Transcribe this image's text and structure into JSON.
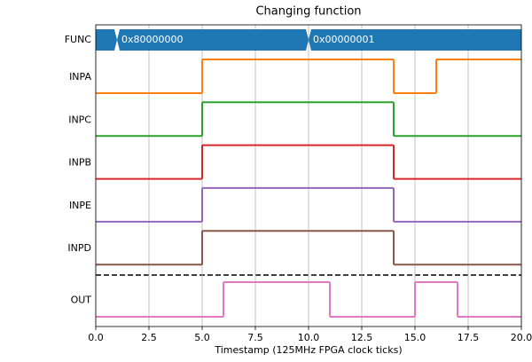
{
  "chart_data": {
    "type": "timing",
    "title": "Changing function",
    "xlabel": "Timestamp (125MHz FPGA clock ticks)",
    "xlim": [
      0,
      20
    ],
    "xticks": [
      {
        "value": 0,
        "label": "0.0"
      },
      2.5,
      {
        "value": 5,
        "label": "5.0"
      },
      7.5,
      {
        "value": 10,
        "label": "10.0"
      },
      12.5,
      {
        "value": 15,
        "label": "15.0"
      },
      17.5,
      {
        "value": 20,
        "label": "20.0"
      }
    ],
    "grid": true,
    "bus": {
      "name": "FUNC",
      "color": "#1f77b4",
      "x": [
        0,
        1,
        10
      ],
      "labels": [
        null,
        "0x80000000",
        "0x00000001"
      ]
    },
    "series": [
      {
        "name": "INPA",
        "color": "#ff7f0e",
        "x": [
          0,
          5,
          14,
          16
        ],
        "values": [
          0,
          1,
          0,
          1
        ]
      },
      {
        "name": "INPC",
        "color": "#2ca02c",
        "x": [
          0,
          5,
          14
        ],
        "values": [
          0,
          1,
          0
        ]
      },
      {
        "name": "INPB",
        "color": "#d62728",
        "x": [
          0,
          5,
          14
        ],
        "values": [
          0,
          1,
          0
        ]
      },
      {
        "name": "INPE",
        "color": "#9467bd",
        "x": [
          0,
          5,
          14
        ],
        "values": [
          0,
          1,
          0
        ]
      },
      {
        "name": "INPD",
        "color": "#8c564b",
        "x": [
          0,
          5,
          14
        ],
        "values": [
          0,
          1,
          0
        ]
      },
      {
        "name": "OUT",
        "color": "#e377c2",
        "x": [
          0,
          6,
          11,
          15,
          17
        ],
        "values": [
          0,
          1,
          0,
          1,
          0
        ]
      }
    ]
  }
}
